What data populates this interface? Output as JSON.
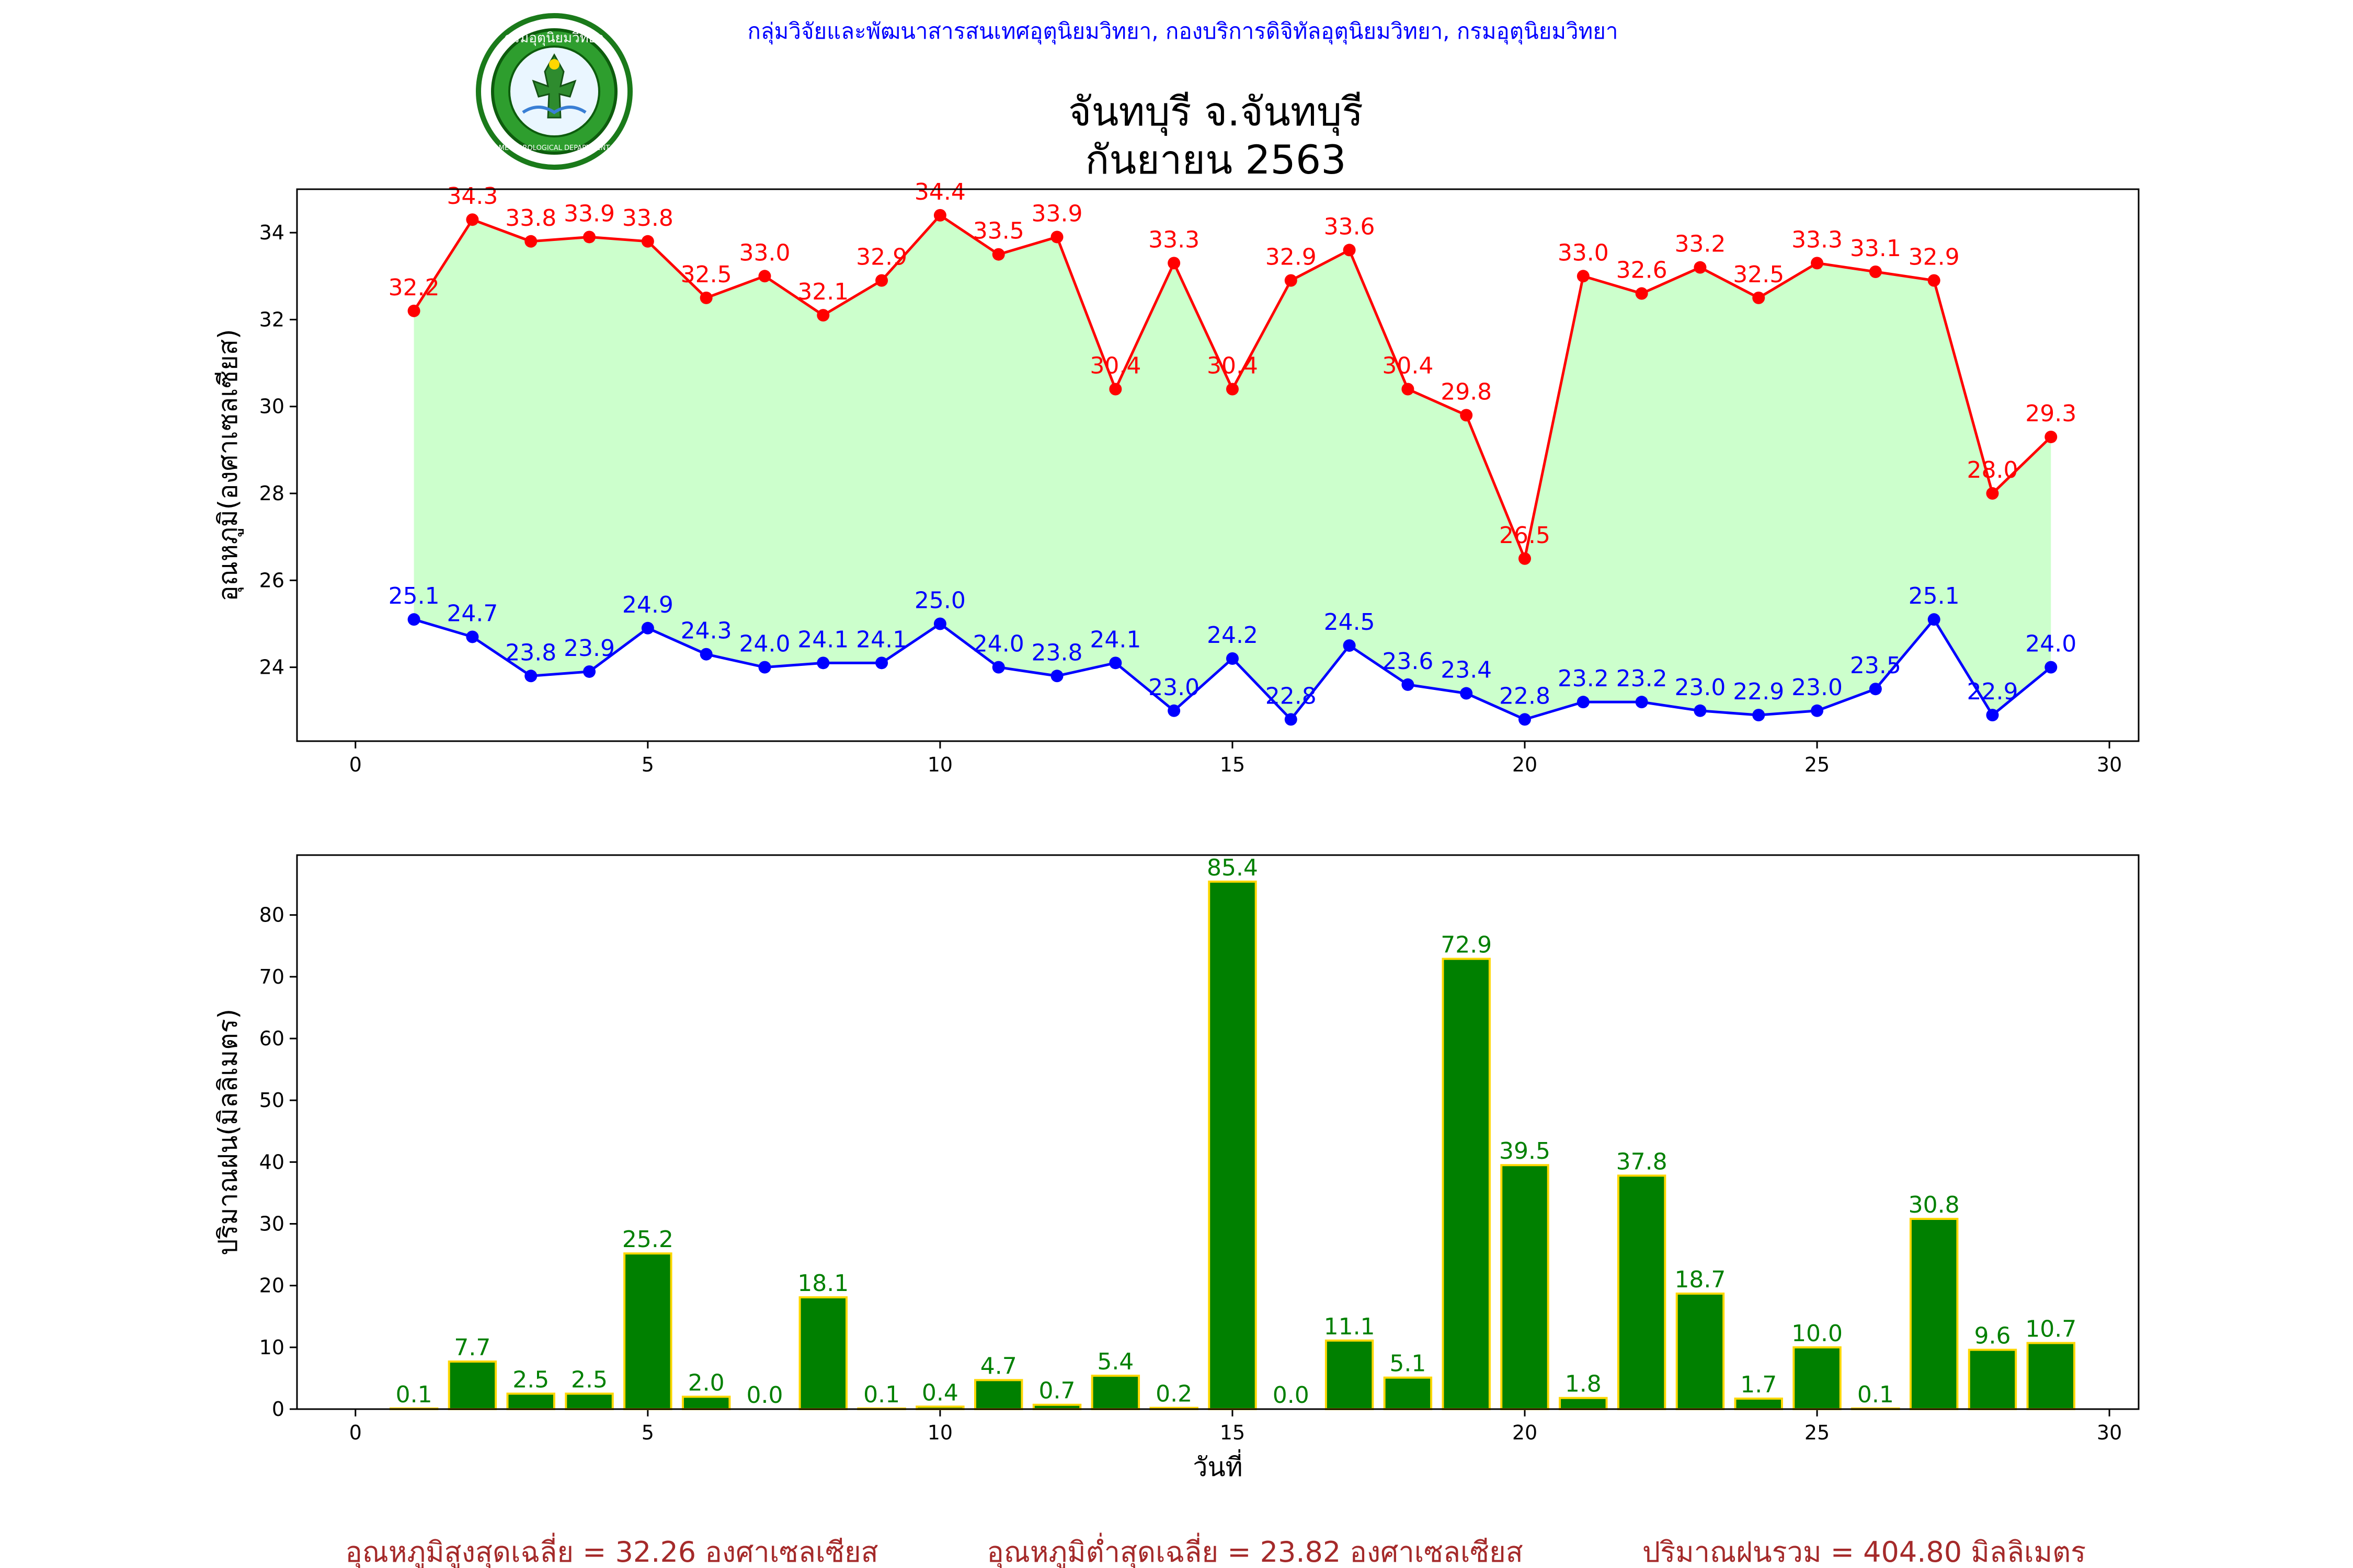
{
  "header": {
    "credit": "กลุ่มวิจัยและพัฒนาสารสนเทศอุตุนิยมวิทยา, กองบริการดิจิทัลอุตุนิยมวิทยา, กรมอุตุนิยมวิทยา",
    "title_line1": "จันทบุรี จ.จันทบุรี",
    "title_line2": "กันยายน 2563",
    "logo_ring_text": "กรมอุตุนิยมวิทยา",
    "logo_bottom_text": "METEOROLOGICAL DEPARTMENT"
  },
  "footer": {
    "avg_max": "อุณหภูมิสูงสุดเฉลี่ย = 32.26 องศาเซลเซียส",
    "avg_min": "อุณหภูมิต่ำสุดเฉลี่ย = 23.82 องศาเซลเซียส",
    "total_rain": "ปริมาณฝนรวม = 404.80 มิลลิเมตร"
  },
  "colors": {
    "max_line": "#ff0000",
    "min_line": "#0000ff",
    "fill": "#ccffcc",
    "bar": "#008000",
    "bar_edge": "#ffd700",
    "bar_label": "#008000",
    "credit": "#0000ff",
    "footer": "#a52a2a"
  },
  "chart_data": [
    {
      "type": "line",
      "ylabel": "อุณหภูมิ(องศาเซลเซียส)",
      "xlabel": "",
      "xlim": [
        -1,
        30.5
      ],
      "ylim": [
        22.3,
        35.0
      ],
      "xticks": [
        0,
        5,
        10,
        15,
        20,
        25,
        30
      ],
      "yticks": [
        24,
        26,
        28,
        30,
        32,
        34
      ],
      "x": [
        1,
        2,
        3,
        4,
        5,
        6,
        7,
        8,
        9,
        10,
        11,
        12,
        13,
        14,
        15,
        16,
        17,
        18,
        19,
        20,
        21,
        22,
        23,
        24,
        25,
        26,
        27,
        28,
        29
      ],
      "series": [
        {
          "key": "max",
          "values": [
            32.2,
            34.3,
            33.8,
            33.9,
            33.8,
            32.5,
            33.0,
            32.1,
            32.9,
            34.4,
            33.5,
            33.9,
            30.4,
            33.3,
            30.4,
            32.9,
            33.6,
            30.4,
            29.8,
            26.5,
            33.0,
            32.6,
            33.2,
            32.5,
            33.3,
            33.1,
            32.9,
            28.0,
            29.3
          ]
        },
        {
          "key": "min",
          "values": [
            25.1,
            24.7,
            23.8,
            23.9,
            24.9,
            24.3,
            24.0,
            24.1,
            24.1,
            25.0,
            24.0,
            23.8,
            24.1,
            23.0,
            24.2,
            22.8,
            24.5,
            23.6,
            23.4,
            22.8,
            23.2,
            23.2,
            23.0,
            22.9,
            23.0,
            23.5,
            25.1,
            22.9,
            24.0
          ]
        }
      ]
    },
    {
      "type": "bar",
      "ylabel": "ปริมาณฝน(มิลลิเมตร)",
      "xlabel": "วันที่",
      "xlim": [
        -1,
        30.5
      ],
      "ylim": [
        0,
        89.7
      ],
      "xticks": [
        0,
        5,
        10,
        15,
        20,
        25,
        30
      ],
      "yticks": [
        0,
        10,
        20,
        30,
        40,
        50,
        60,
        70,
        80
      ],
      "x": [
        1,
        2,
        3,
        4,
        5,
        6,
        7,
        8,
        9,
        10,
        11,
        12,
        13,
        14,
        15,
        16,
        17,
        18,
        19,
        20,
        21,
        22,
        23,
        24,
        25,
        26,
        27,
        28,
        29
      ],
      "values": [
        0.1,
        7.7,
        2.5,
        2.5,
        25.2,
        2.0,
        0.0,
        18.1,
        0.1,
        0.4,
        4.7,
        0.7,
        5.4,
        0.2,
        85.4,
        0.0,
        11.1,
        5.1,
        72.9,
        39.5,
        1.8,
        37.8,
        18.7,
        1.7,
        10.0,
        0.1,
        30.8,
        9.6,
        10.7
      ]
    }
  ]
}
